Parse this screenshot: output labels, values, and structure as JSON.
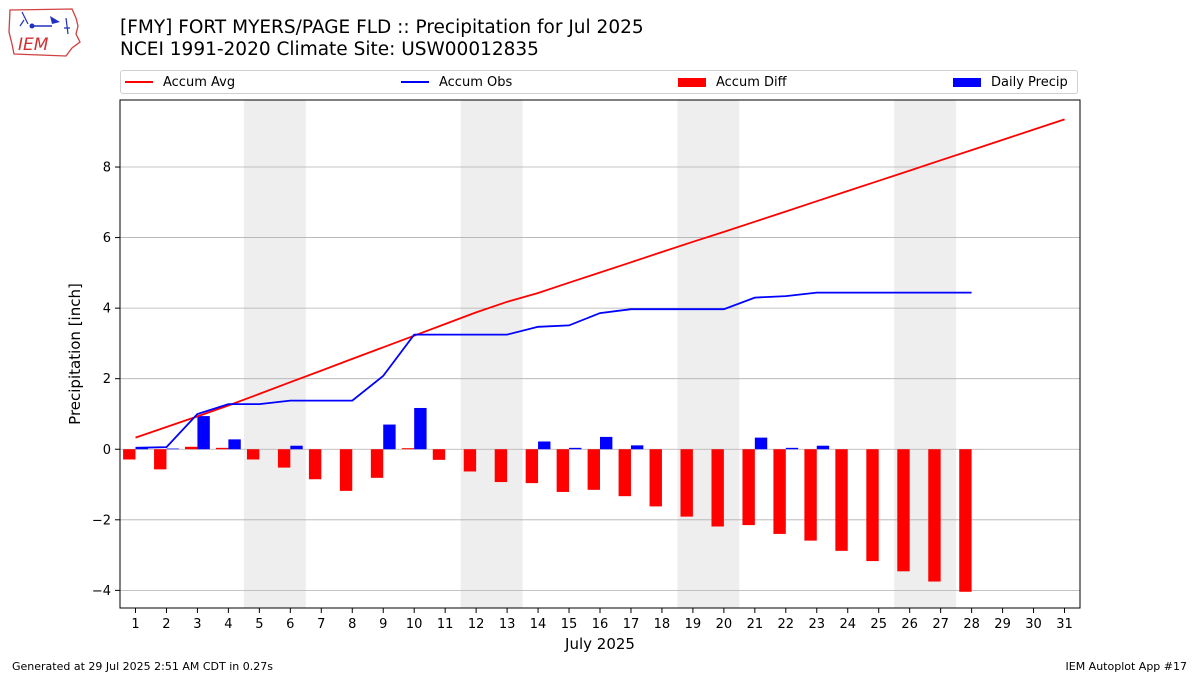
{
  "header": {
    "title_line1": "[FMY] FORT MYERS/PAGE FLD :: Precipitation for Jul 2025",
    "title_line2": "NCEI 1991-2020 Climate Site: USW00012835",
    "logo_text": "IEM"
  },
  "footer": {
    "left": "Generated at 29 Jul 2025 2:51 AM CDT in 0.27s",
    "right": "IEM Autoplot App #17"
  },
  "colors": {
    "accum_avg": "#ff0000",
    "accum_obs": "#0000ff",
    "accum_diff": "#ff0000",
    "daily_precip": "#0000ff",
    "weekend_shade": "#eeeeee",
    "grid": "#b0b0b0"
  },
  "chart_data": {
    "type": "bar",
    "xlabel": "July 2025",
    "ylabel": "Precipitation [inch]",
    "xlim": [
      0.5,
      31.5
    ],
    "ylim": [
      -4.5,
      9.9
    ],
    "yticks": [
      -4,
      -2,
      0,
      2,
      4,
      6,
      8
    ],
    "grid": "horizontal",
    "legend_position": "top",
    "days": [
      1,
      2,
      3,
      4,
      5,
      6,
      7,
      8,
      9,
      10,
      11,
      12,
      13,
      14,
      15,
      16,
      17,
      18,
      19,
      20,
      21,
      22,
      23,
      24,
      25,
      26,
      27,
      28,
      29,
      30,
      31
    ],
    "shaded_day_ranges": [
      [
        5,
        6
      ],
      [
        12,
        13
      ],
      [
        19,
        20
      ],
      [
        26,
        27
      ]
    ],
    "legend": [
      "Accum Avg",
      "Accum Obs",
      "Accum Diff",
      "Daily Precip"
    ],
    "series": [
      {
        "name": "Accum Avg",
        "kind": "line",
        "values": [
          0.33,
          0.63,
          0.93,
          1.24,
          1.57,
          1.9,
          2.23,
          2.56,
          2.89,
          3.22,
          3.55,
          3.88,
          4.18,
          4.43,
          4.72,
          5.01,
          5.3,
          5.59,
          5.88,
          6.16,
          6.45,
          6.74,
          7.03,
          7.32,
          7.61,
          7.9,
          8.19,
          8.48,
          8.77,
          9.06,
          9.35
        ]
      },
      {
        "name": "Accum Obs",
        "kind": "line",
        "values": [
          0.04,
          0.06,
          1.0,
          1.28,
          1.28,
          1.38,
          1.38,
          1.38,
          2.08,
          3.25,
          3.25,
          3.25,
          3.25,
          3.47,
          3.51,
          3.86,
          3.97,
          3.97,
          3.97,
          3.97,
          4.3,
          4.34,
          4.44,
          4.44,
          4.44,
          4.44,
          4.44,
          4.44
        ]
      },
      {
        "name": "Accum Diff",
        "kind": "bar",
        "values": [
          -0.29,
          -0.57,
          0.07,
          0.04,
          -0.29,
          -0.52,
          -0.85,
          -1.18,
          -0.81,
          0.03,
          -0.3,
          -0.63,
          -0.93,
          -0.96,
          -1.21,
          -1.15,
          -1.33,
          -1.62,
          -1.91,
          -2.19,
          -2.15,
          -2.4,
          -2.59,
          -2.88,
          -3.17,
          -3.46,
          -3.75,
          -4.04
        ]
      },
      {
        "name": "Daily Precip",
        "kind": "bar",
        "values": [
          0.04,
          0.02,
          0.94,
          0.28,
          0.0,
          0.1,
          0.0,
          0.0,
          0.7,
          1.17,
          0.0,
          0.0,
          0.0,
          0.22,
          0.04,
          0.35,
          0.11,
          0.0,
          0.0,
          0.0,
          0.33,
          0.04,
          0.1,
          0.0,
          0.0,
          0.0,
          0.0,
          0.0
        ]
      }
    ]
  }
}
